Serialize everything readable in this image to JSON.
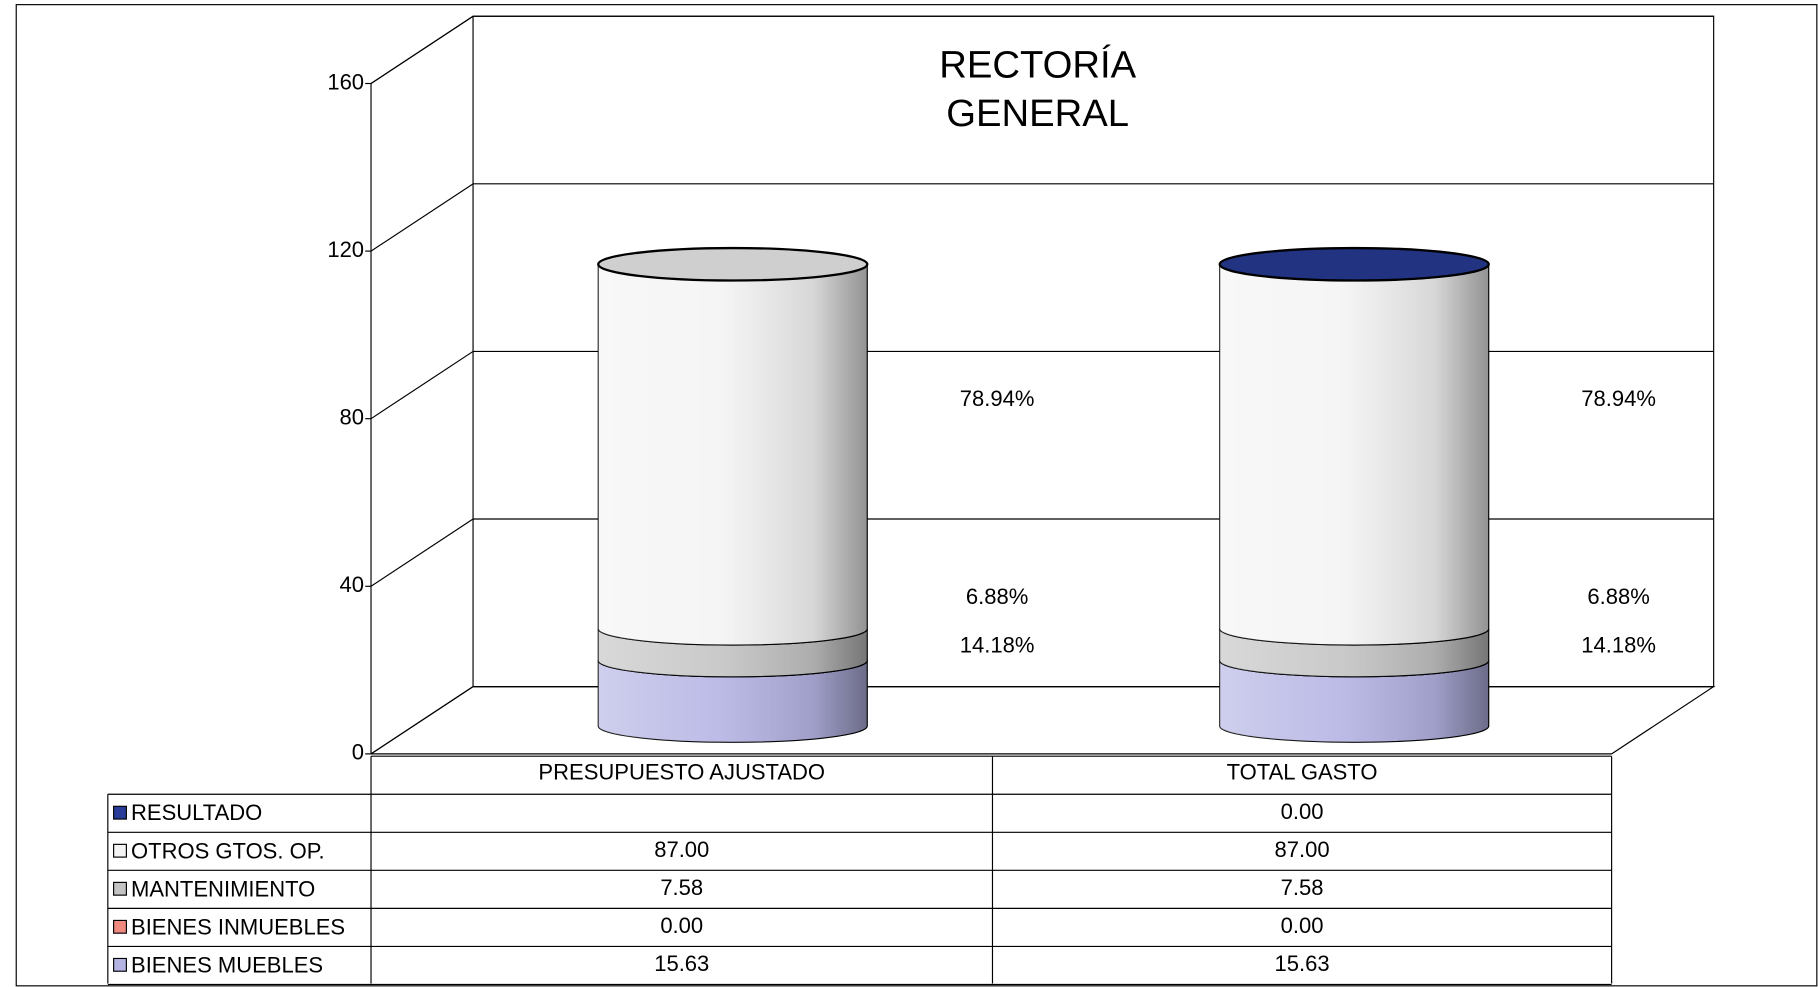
{
  "chart_data": {
    "type": "bar",
    "stacked": true,
    "title": [
      "RECTORÍA",
      "GENERAL"
    ],
    "categories": [
      "PRESUPUESTO AJUSTADO",
      "TOTAL  GASTO"
    ],
    "series": [
      {
        "name": "BIENES MUEBLES",
        "color": "#b4b4e4",
        "values": [
          15.63,
          15.63
        ],
        "value_labels": [
          "15.63",
          "15.63"
        ],
        "shares": [
          14.18,
          14.18
        ],
        "share_labels": [
          "14.18%",
          "14.18%"
        ]
      },
      {
        "name": "BIENES INMUEBLES",
        "color": "#f08a80",
        "values": [
          0,
          0
        ],
        "value_labels": [
          "0.00",
          "0.00"
        ]
      },
      {
        "name": "MANTENIMIENTO",
        "color": "#c4c4c4",
        "values": [
          7.58,
          7.58
        ],
        "value_labels": [
          "7.58",
          "7.58"
        ],
        "shares": [
          6.88,
          6.88
        ],
        "share_labels": [
          "6.88%",
          "6.88%"
        ]
      },
      {
        "name": "OTROS GTOS. OP.",
        "color": "#f4f4f4",
        "values": [
          87,
          87
        ],
        "value_labels": [
          "87.00",
          "87.00"
        ],
        "shares": [
          78.94,
          78.94
        ],
        "share_labels": [
          "78.94%",
          "78.94%"
        ]
      },
      {
        "name": "RESULTADO",
        "color": "#283c98",
        "values": [
          null,
          0
        ],
        "value_labels": [
          null,
          "0.00"
        ]
      }
    ],
    "ylim": [
      0,
      160
    ],
    "yticks": [
      0,
      40,
      80,
      120,
      160
    ],
    "grid": true
  }
}
